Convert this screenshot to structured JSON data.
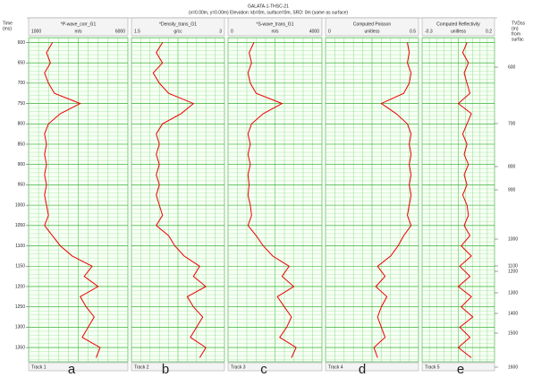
{
  "header": {
    "title": "GALATA-1-THSC-21",
    "subtitle": "(x=0.00m, y=0.00m) Elevation: kb=0m, surface=0m, SRD: 0m (same as surface)"
  },
  "time_axis": {
    "label_lines": [
      "Time",
      "(ms)"
    ],
    "lim": [
      588,
      1385
    ],
    "ticks": [
      600,
      650,
      700,
      750,
      800,
      850,
      900,
      950,
      1000,
      1050,
      1100,
      1150,
      1200,
      1250,
      1300,
      1350
    ]
  },
  "depth_axis": {
    "label_lines": [
      "TVDss",
      "(m)",
      "from",
      "surfac"
    ],
    "ticks": [
      600,
      700,
      800,
      900,
      1000,
      1100,
      1200,
      1300,
      1400,
      1500,
      1600
    ]
  },
  "times": [
    600,
    625,
    650,
    675,
    700,
    725,
    750,
    775,
    800,
    825,
    850,
    875,
    900,
    925,
    950,
    975,
    1000,
    1025,
    1050,
    1075,
    1100,
    1125,
    1150,
    1175,
    1200,
    1225,
    1250,
    1275,
    1300,
    1325,
    1350,
    1375
  ],
  "tracks": [
    {
      "name": "*P-wave_corr_G1",
      "unit": "m/s",
      "min": 1000,
      "max": 6000,
      "footer": "Track 1",
      "letter": "a",
      "values": [
        2200,
        1900,
        2100,
        1800,
        2000,
        2300,
        3600,
        2600,
        2000,
        1800,
        1900,
        1800,
        1900,
        1800,
        1900,
        1800,
        1900,
        2000,
        1800,
        2200,
        2600,
        3200,
        4200,
        3800,
        4500,
        3600,
        3900,
        4300,
        4000,
        3700,
        4600,
        4400
      ]
    },
    {
      "name": "*Density_trans_G1",
      "unit": "g/cc",
      "min": 1.5,
      "max": 3,
      "footer": "Track 2",
      "letter": "b",
      "values": [
        2.0,
        1.9,
        2.0,
        1.85,
        1.95,
        2.1,
        2.5,
        2.3,
        2.0,
        1.9,
        1.95,
        1.9,
        1.95,
        1.9,
        1.95,
        1.9,
        1.95,
        2.0,
        1.9,
        2.1,
        2.2,
        2.35,
        2.6,
        2.5,
        2.7,
        2.4,
        2.5,
        2.65,
        2.55,
        2.45,
        2.7,
        2.6
      ]
    },
    {
      "name": "*S-wave_trans_G1",
      "unit": "m/s",
      "min": 0,
      "max": 4000,
      "footer": "Track 3",
      "letter": "c",
      "values": [
        1100,
        900,
        1000,
        850,
        950,
        1200,
        2300,
        1500,
        1000,
        850,
        950,
        850,
        950,
        850,
        900,
        850,
        950,
        1000,
        850,
        1200,
        1500,
        1900,
        2600,
        2300,
        2800,
        2100,
        2400,
        2700,
        2500,
        2200,
        2900,
        2700
      ]
    },
    {
      "name": "Computed Poisson",
      "unit": "unitless",
      "min": 0,
      "max": 0.5,
      "footer": "Track 4",
      "letter": "d",
      "values": [
        0.44,
        0.45,
        0.44,
        0.46,
        0.45,
        0.42,
        0.3,
        0.38,
        0.44,
        0.46,
        0.45,
        0.46,
        0.45,
        0.46,
        0.45,
        0.46,
        0.45,
        0.44,
        0.46,
        0.42,
        0.39,
        0.35,
        0.28,
        0.32,
        0.27,
        0.33,
        0.3,
        0.28,
        0.3,
        0.32,
        0.26,
        0.28
      ]
    },
    {
      "name": "Computed Reflectivity",
      "unit": "unitless",
      "min": -0.3,
      "max": 0.2,
      "footer": "Track 5",
      "letter": "e",
      "values": [
        0.01,
        -0.02,
        0.02,
        -0.01,
        0.01,
        0.03,
        -0.05,
        0.04,
        0.01,
        -0.02,
        0.01,
        -0.01,
        0.02,
        -0.01,
        0.01,
        -0.02,
        0.01,
        0.02,
        -0.01,
        0.03,
        -0.03,
        0.04,
        -0.04,
        0.03,
        -0.05,
        0.04,
        -0.03,
        0.05,
        -0.04,
        0.03,
        -0.05,
        0.04
      ]
    }
  ]
}
